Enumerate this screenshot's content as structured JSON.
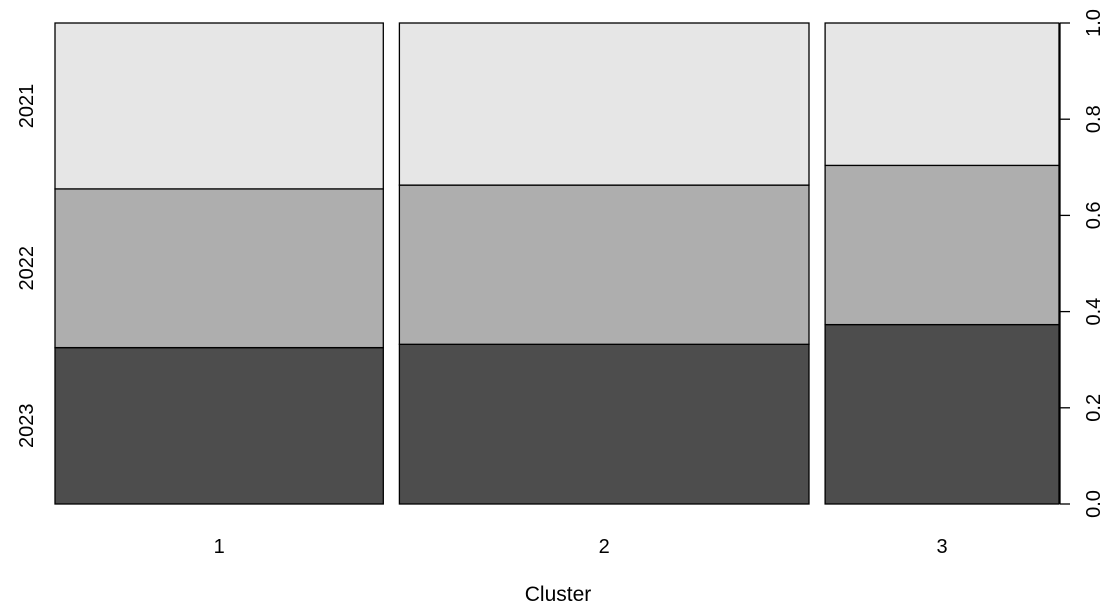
{
  "chart_data": {
    "type": "bar",
    "subtype": "spineplot",
    "xlabel": "Cluster",
    "ylabel": "",
    "categories": [
      "1",
      "2",
      "3"
    ],
    "category_widths": [
      0.327,
      0.408,
      0.233
    ],
    "series": [
      {
        "name": "2023",
        "values": [
          0.325,
          0.332,
          0.373
        ]
      },
      {
        "name": "2022",
        "values": [
          0.33,
          0.331,
          0.331
        ]
      },
      {
        "name": "2021",
        "values": [
          0.345,
          0.337,
          0.296
        ]
      }
    ],
    "series_colors": [
      "#4d4d4d",
      "#aeaeae",
      "#e6e6e6"
    ],
    "ylim": [
      0,
      1
    ],
    "yticks": [
      "0.0",
      "0.2",
      "0.4",
      "0.6",
      "0.8",
      "1.0"
    ],
    "yaxis_position": "right",
    "left_labels": [
      "2023",
      "2022",
      "2021"
    ],
    "grid": false,
    "legend": "none"
  }
}
